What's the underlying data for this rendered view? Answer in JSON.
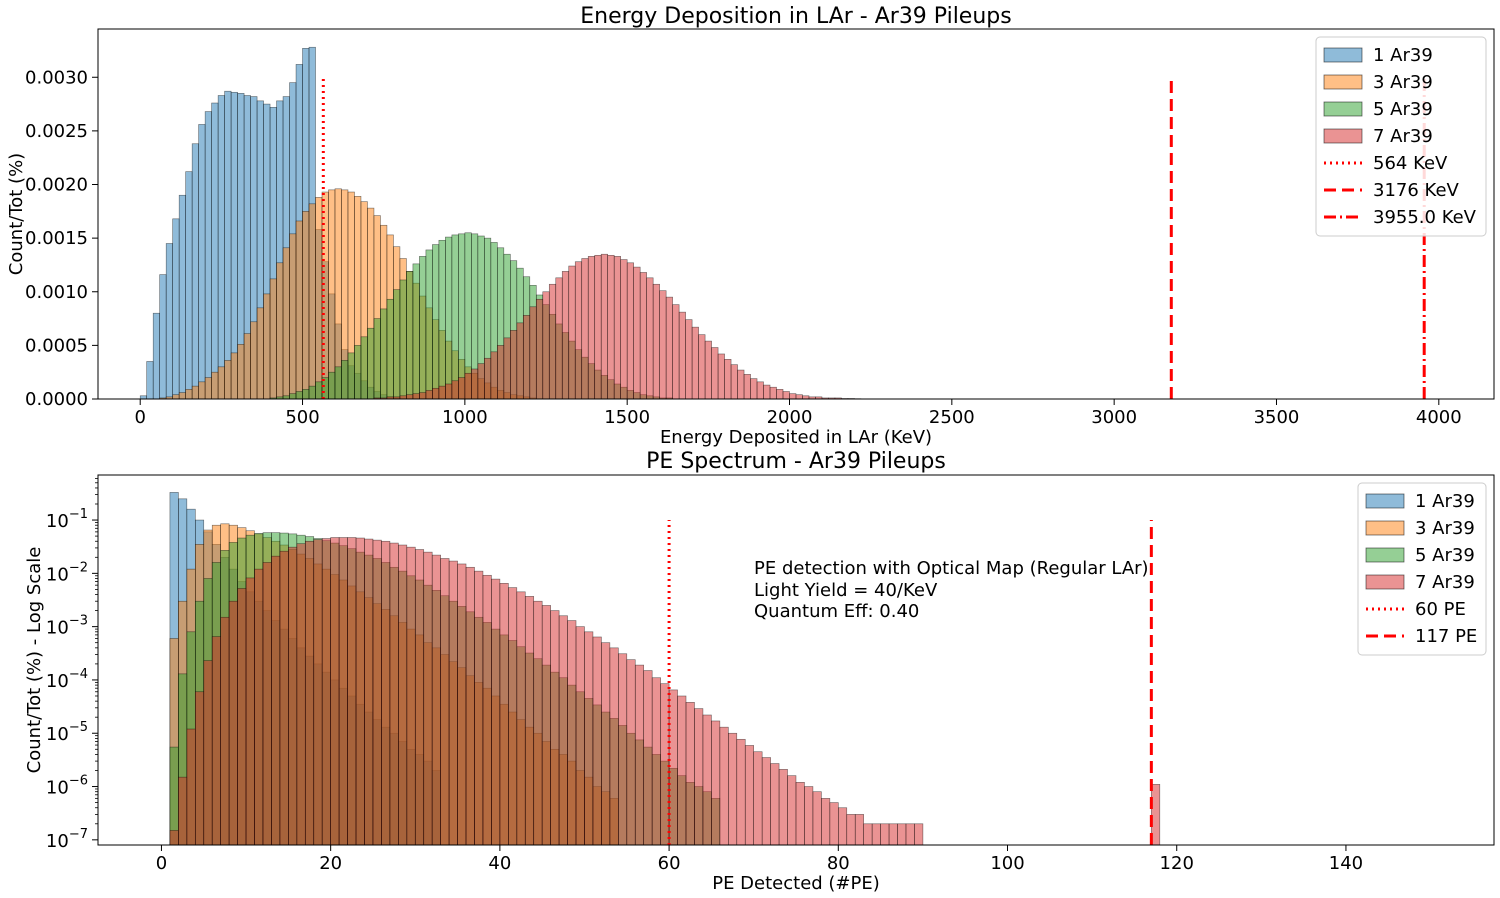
{
  "colors": {
    "1 Ar39": "#1f77b4",
    "3 Ar39": "#ff7f0e",
    "5 Ar39": "#2ca02c",
    "7 Ar39": "#d62728",
    "threshold": "#ff0000"
  },
  "chart_data": [
    {
      "type": "bar",
      "title": "Energy Deposition in LAr - Ar39 Pileups",
      "xlabel": "Energy Deposited in LAr (KeV)",
      "ylabel": "Count/Tot (%)",
      "xlim": [
        -130,
        4170
      ],
      "ylim": [
        0,
        0.00345
      ],
      "xticks": [
        0,
        500,
        1000,
        1500,
        2000,
        2500,
        3000,
        3500,
        4000
      ],
      "yticks": [
        "0.0000",
        "0.0005",
        "0.0010",
        "0.0015",
        "0.0020",
        "0.0025",
        "0.0030"
      ],
      "yscale": "linear",
      "legend_position": "upper right",
      "series": [
        {
          "name": "1 Ar39",
          "x_start": 0,
          "bin_width": 20,
          "values": [
            3e-05,
            0.00035,
            0.0008,
            0.00116,
            0.00145,
            0.00168,
            0.0019,
            0.00212,
            0.00238,
            0.00256,
            0.00268,
            0.00276,
            0.00283,
            0.00287,
            0.00286,
            0.00285,
            0.00283,
            0.00282,
            0.00278,
            0.00275,
            0.00272,
            0.00278,
            0.00282,
            0.00295,
            0.00312,
            0.00327,
            0.00328,
            0.00158,
            0.00128,
            0.00098,
            0.0007,
            0.00046,
            0.00031,
            0.00024,
            0.00017,
            0.00011,
            7e-05,
            4e-05,
            2e-05,
            1e-05
          ]
        },
        {
          "name": "3 Ar39",
          "x_start": 60,
          "bin_width": 20,
          "values": [
            1e-05,
            2e-05,
            4e-05,
            6e-05,
            9e-05,
            0.00012,
            0.00016,
            0.0002,
            0.00025,
            0.0003,
            0.00036,
            0.00043,
            0.00051,
            0.00061,
            0.00072,
            0.00085,
            0.00098,
            0.00112,
            0.00127,
            0.00141,
            0.00154,
            0.00166,
            0.00175,
            0.00182,
            0.00188,
            0.00193,
            0.00195,
            0.00196,
            0.00195,
            0.00193,
            0.00189,
            0.00184,
            0.00178,
            0.00171,
            0.00162,
            0.00153,
            0.00142,
            0.00131,
            0.00119,
            0.00108,
            0.00096,
            0.00085,
            0.00074,
            0.00064,
            0.00054,
            0.00045,
            0.00037,
            0.0003,
            0.00024,
            0.00019,
            0.00015,
            0.00011,
            8e-05,
            6e-05,
            4e-05,
            3e-05,
            2e-05,
            1e-05
          ]
        },
        {
          "name": "5 Ar39",
          "x_start": 400,
          "bin_width": 20,
          "values": [
            1e-05,
            2e-05,
            3e-05,
            5e-05,
            7e-05,
            9e-05,
            0.00012,
            0.00016,
            0.0002,
            0.00025,
            0.0003,
            0.00036,
            0.00043,
            0.0005,
            0.00058,
            0.00066,
            0.00075,
            0.00084,
            0.00093,
            0.00102,
            0.00111,
            0.00119,
            0.00126,
            0.00133,
            0.00139,
            0.00144,
            0.00148,
            0.00151,
            0.00153,
            0.00154,
            0.00155,
            0.00154,
            0.00152,
            0.0015,
            0.00146,
            0.00141,
            0.00135,
            0.00129,
            0.00122,
            0.00114,
            0.00106,
            0.00097,
            0.00088,
            0.00079,
            0.0007,
            0.00062,
            0.00054,
            0.00046,
            0.00039,
            0.00033,
            0.00027,
            0.00022,
            0.00018,
            0.00014,
            0.00011,
            8e-05,
            6e-05,
            4e-05,
            3e-05,
            2e-05,
            1e-05,
            1e-05
          ]
        },
        {
          "name": "7 Ar39",
          "x_start": 720,
          "bin_width": 20,
          "values": [
            1e-05,
            1e-05,
            2e-05,
            2e-05,
            3e-05,
            4e-05,
            5e-05,
            6e-05,
            8e-05,
            0.0001,
            0.00012,
            0.00014,
            0.00017,
            0.0002,
            0.00024,
            0.00028,
            0.00033,
            0.00038,
            0.00044,
            0.0005,
            0.00057,
            0.00064,
            0.00071,
            0.00078,
            0.00086,
            0.00093,
            0.001,
            0.00107,
            0.00113,
            0.00119,
            0.00124,
            0.00128,
            0.00131,
            0.00133,
            0.00134,
            0.00135,
            0.00134,
            0.00133,
            0.0013,
            0.00127,
            0.00123,
            0.00118,
            0.00113,
            0.00107,
            0.00101,
            0.00095,
            0.00088,
            0.00081,
            0.00074,
            0.00067,
            0.0006,
            0.00054,
            0.00048,
            0.00042,
            0.00037,
            0.00032,
            0.00027,
            0.00023,
            0.00019,
            0.00016,
            0.00013,
            0.00011,
            9e-05,
            7e-05,
            5e-05,
            4e-05,
            3e-05,
            2e-05,
            2e-05,
            1e-05,
            1e-05,
            1e-05,
            5e-06,
            5e-06,
            3e-06,
            2e-06,
            2e-06,
            1e-06,
            1e-06,
            1e-06,
            1e-06,
            1e-06,
            1e-06,
            1e-06,
            1e-06,
            1e-06,
            1e-06,
            1e-06,
            1e-06,
            1e-06,
            1e-06,
            1e-06,
            1e-06,
            1e-06,
            1e-06,
            1e-06,
            1e-06,
            1e-06,
            1e-06
          ]
        }
      ],
      "vlines": [
        {
          "label": "564 KeV",
          "x": 564,
          "y_top": 0.003,
          "style": "dotted"
        },
        {
          "label": "3176 KeV",
          "x": 3176,
          "y_top": 0.003,
          "style": "dashed"
        },
        {
          "label": "3955.0 KeV",
          "x": 3955,
          "y_top": 0.003,
          "style": "dashdot"
        }
      ]
    },
    {
      "type": "bar",
      "title": "PE Spectrum - Ar39 Pileups",
      "xlabel": "PE Detected (#PE)",
      "ylabel": "Count/Tot (%) - Log Scale",
      "xlim": [
        -7.5,
        157.5
      ],
      "ylim": [
        8e-08,
        0.7
      ],
      "xticks": [
        0,
        20,
        40,
        60,
        80,
        100,
        120,
        140
      ],
      "yscale": "log",
      "ytick_exponents": [
        -7,
        -6,
        -5,
        -4,
        -3,
        -2,
        -1
      ],
      "legend_position": "upper right",
      "annotation": [
        "PE detection with Optical Map (Regular LAr)",
        "Light Yield = 40/KeV",
        "Quantum Eff: 0.40"
      ],
      "series": [
        {
          "name": "1 Ar39",
          "x_start": 1,
          "bin_width": 1,
          "values": [
            0.33,
            0.25,
            0.16,
            0.1,
            0.06,
            0.035,
            0.02,
            0.012,
            0.007,
            0.0045,
            0.003,
            0.002,
            0.0013,
            0.0009,
            0.0006,
            0.0004,
            0.00028,
            0.0002,
            0.00014,
            0.0001,
            7e-05,
            5e-05,
            3.5e-05,
            2.5e-05,
            1.8e-05,
            1.3e-05,
            1e-05,
            7e-06,
            5e-06,
            4e-06,
            3e-06,
            2e-06
          ]
        },
        {
          "name": "3 Ar39",
          "x_start": 1,
          "bin_width": 1,
          "values": [
            0.0006,
            0.003,
            0.012,
            0.035,
            0.065,
            0.08,
            0.085,
            0.08,
            0.072,
            0.063,
            0.055,
            0.047,
            0.04,
            0.034,
            0.028,
            0.023,
            0.019,
            0.015,
            0.012,
            0.0095,
            0.0075,
            0.0058,
            0.0045,
            0.0035,
            0.0027,
            0.0021,
            0.0016,
            0.0012,
            0.0009,
            0.0007,
            0.0005,
            0.0004,
            0.0003,
            0.00022,
            0.00017,
            0.00012,
            9e-05,
            7e-05,
            5e-05,
            3.5e-05,
            2.5e-05,
            1.8e-05,
            1.3e-05,
            1e-05,
            7e-06,
            5e-06,
            4e-06,
            3e-06,
            2e-06,
            1.5e-06,
            1e-06,
            8e-07,
            6e-07
          ]
        },
        {
          "name": "5 Ar39",
          "x_start": 1,
          "bin_width": 1,
          "values": [
            5.5e-06,
            0.00013,
            0.0008,
            0.003,
            0.008,
            0.016,
            0.027,
            0.038,
            0.046,
            0.052,
            0.056,
            0.058,
            0.058,
            0.057,
            0.055,
            0.052,
            0.049,
            0.045,
            0.041,
            0.037,
            0.033,
            0.029,
            0.025,
            0.022,
            0.019,
            0.016,
            0.013,
            0.011,
            0.009,
            0.0075,
            0.006,
            0.0048,
            0.0038,
            0.003,
            0.0024,
            0.0019,
            0.0015,
            0.0012,
            0.0009,
            0.0007,
            0.00055,
            0.00042,
            0.00032,
            0.00025,
            0.00019,
            0.00014,
            0.00011,
            8e-05,
            6e-05,
            4.5e-05,
            3.4e-05,
            2.5e-05,
            1.9e-05,
            1.4e-05,
            1e-05,
            7.5e-06,
            5.5e-06,
            4e-06,
            3e-06,
            2.2e-06,
            1.6e-06,
            1.2e-06,
            1e-06,
            8e-07,
            6e-07
          ]
        },
        {
          "name": "7 Ar39",
          "x_start": 1,
          "bin_width": 1,
          "values": [
            1.5e-07,
            1.5e-06,
            1.2e-05,
            6e-05,
            0.00023,
            0.00065,
            0.0015,
            0.003,
            0.0052,
            0.0082,
            0.012,
            0.016,
            0.021,
            0.026,
            0.031,
            0.036,
            0.04,
            0.043,
            0.045,
            0.047,
            0.047,
            0.047,
            0.046,
            0.044,
            0.042,
            0.04,
            0.037,
            0.034,
            0.031,
            0.028,
            0.025,
            0.022,
            0.019,
            0.017,
            0.015,
            0.013,
            0.011,
            0.0092,
            0.0078,
            0.0065,
            0.0054,
            0.0045,
            0.0037,
            0.003,
            0.0025,
            0.002,
            0.0016,
            0.0013,
            0.001,
            0.0008,
            0.00064,
            0.0005,
            0.0004,
            0.00031,
            0.00024,
            0.00019,
            0.00015,
            0.00011,
            8.5e-05,
            6.5e-05,
            5e-05,
            3.8e-05,
            2.9e-05,
            2.2e-05,
            1.7e-05,
            1.3e-05,
            1e-05,
            7.7e-06,
            5.9e-06,
            4.5e-06,
            3.5e-06,
            2.7e-06,
            2.1e-06,
            1.6e-06,
            1.2e-06,
            1e-06,
            8e-07,
            6e-07,
            5e-07,
            4e-07,
            3e-07,
            3e-07,
            2e-07,
            2e-07,
            2e-07,
            2e-07,
            2e-07,
            2e-07,
            2e-07
          ]
        }
      ],
      "extra_bars": [
        {
          "series": "7 Ar39",
          "x": 117,
          "value": 1.1e-06
        }
      ],
      "vlines": [
        {
          "label": "60 PE",
          "x": 60,
          "y_top": 0.1,
          "style": "dotted"
        },
        {
          "label": "117 PE",
          "x": 117,
          "y_top": 0.1,
          "style": "dashed"
        }
      ]
    }
  ]
}
